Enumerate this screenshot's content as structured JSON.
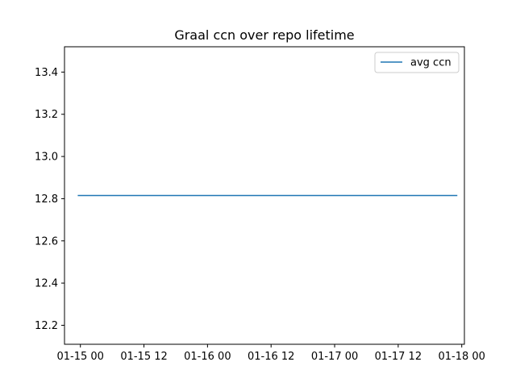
{
  "chart_data": {
    "type": "line",
    "title": "Graal ccn over repo lifetime",
    "xlabel": "",
    "ylabel": "",
    "x_axis_type": "date",
    "xlim": [
      "2024-01-14 21:00",
      "2024-01-18 00:30"
    ],
    "ylim": [
      12.11,
      13.52
    ],
    "x_ticks": [
      {
        "value": "2024-01-15 00:00",
        "label": "01-15 00"
      },
      {
        "value": "2024-01-15 12:00",
        "label": "01-15 12"
      },
      {
        "value": "2024-01-16 00:00",
        "label": "01-16 00"
      },
      {
        "value": "2024-01-16 12:00",
        "label": "01-16 12"
      },
      {
        "value": "2024-01-17 00:00",
        "label": "01-17 00"
      },
      {
        "value": "2024-01-17 12:00",
        "label": "01-17 12"
      },
      {
        "value": "2024-01-18 00:00",
        "label": "01-18 00"
      }
    ],
    "y_ticks": [
      {
        "value": 12.2,
        "label": "12.2"
      },
      {
        "value": 12.4,
        "label": "12.4"
      },
      {
        "value": 12.6,
        "label": "12.6"
      },
      {
        "value": 12.8,
        "label": "12.8"
      },
      {
        "value": 13.0,
        "label": "13.0"
      },
      {
        "value": 13.2,
        "label": "13.2"
      },
      {
        "value": 13.4,
        "label": "13.4"
      }
    ],
    "series": [
      {
        "name": "avg ccn",
        "color": "#1f77b4",
        "points": [
          {
            "x": "2024-01-14 23:30",
            "y": 12.815
          },
          {
            "x": "2024-01-17 23:10",
            "y": 12.815
          }
        ]
      }
    ],
    "legend": {
      "position": "top-right"
    },
    "grid": false
  }
}
